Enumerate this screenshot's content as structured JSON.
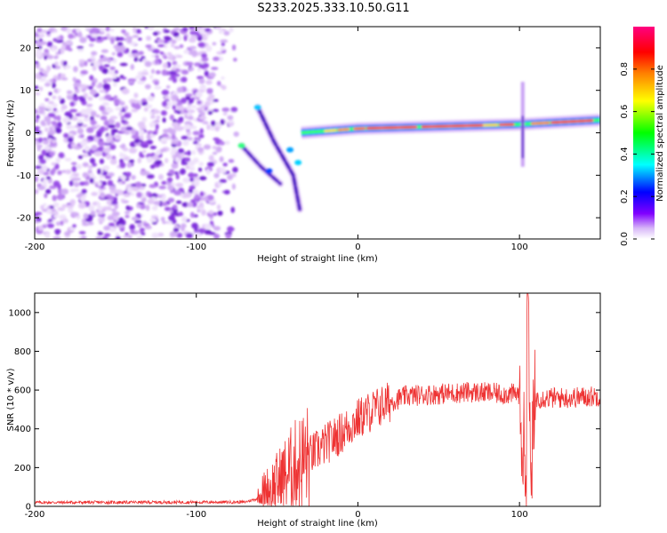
{
  "title": "S233.2025.333.10.50.G11",
  "chart_data": [
    {
      "type": "heatmap",
      "title": "S233.2025.333.10.50.G11",
      "xlabel": "Height of straight line (km)",
      "ylabel": "Frequency (Hz)",
      "xlim": [
        -200,
        150
      ],
      "ylim": [
        -25,
        25
      ],
      "xticks": [
        -200,
        -100,
        0,
        100
      ],
      "xtick_labels": [
        "-200",
        "-100",
        "0",
        "100"
      ],
      "yticks": [
        -20,
        -10,
        0,
        10,
        20
      ],
      "ytick_labels": [
        "-20",
        "-10",
        "0",
        "10",
        "20"
      ],
      "colorbar": {
        "label": "Normalized spectral amplitude",
        "range": [
          0,
          1
        ],
        "ticks": [
          0.0,
          0.2,
          0.4,
          0.6,
          0.8
        ],
        "tick_labels": [
          "0.0",
          "0.2",
          "0.4",
          "0.6",
          "0.8"
        ],
        "colors": [
          "#ffffff",
          "#c890f0",
          "#8000ff",
          "#0000ff",
          "#00ffff",
          "#00ff00",
          "#ffff00",
          "#ff8000",
          "#ff0000",
          "#ff0080"
        ]
      },
      "features": [
        {
          "name": "noise region",
          "x_range": [
            -200,
            -72
          ],
          "freq_range": [
            -25,
            25
          ],
          "amplitude": 0.05
        },
        {
          "name": "descending trace 1",
          "points": [
            [
              -62,
              6
            ],
            [
              -52,
              -2
            ],
            [
              -40,
              -10
            ],
            [
              -36,
              -18
            ]
          ],
          "amplitude": 0.25
        },
        {
          "name": "descending trace 2",
          "points": [
            [
              -72,
              -3
            ],
            [
              -60,
              -8
            ],
            [
              -48,
              -12
            ]
          ],
          "amplitude": 0.15
        },
        {
          "name": "carrier line",
          "points": [
            [
              -35,
              0
            ],
            [
              0,
              1
            ],
            [
              50,
              1.5
            ],
            [
              100,
              2
            ],
            [
              150,
              3
            ]
          ],
          "amplitude": 0.85
        },
        {
          "name": "spike",
          "x": 102,
          "freq_range": [
            -8,
            12
          ],
          "amplitude": 0.2
        }
      ]
    },
    {
      "type": "line",
      "xlabel": "Height of straight line (km)",
      "ylabel": "SNR (10 * v/v)",
      "xlim": [
        -200,
        150
      ],
      "ylim": [
        0,
        1100
      ],
      "xticks": [
        -200,
        -100,
        0,
        100
      ],
      "xtick_labels": [
        "-200",
        "-100",
        "0",
        "100"
      ],
      "yticks": [
        0,
        200,
        400,
        600,
        800,
        1000
      ],
      "ytick_labels": [
        "0",
        "200",
        "400",
        "600",
        "800",
        "1000"
      ],
      "series": [
        {
          "name": "SNR",
          "color": "#ee3333",
          "key_points": [
            [
              -200,
              20
            ],
            [
              -70,
              22
            ],
            [
              -62,
              40
            ],
            [
              -50,
              120
            ],
            [
              -40,
              200
            ],
            [
              -30,
              260
            ],
            [
              -20,
              320
            ],
            [
              -10,
              380
            ],
            [
              0,
              450
            ],
            [
              10,
              500
            ],
            [
              20,
              540
            ],
            [
              30,
              570
            ],
            [
              50,
              580
            ],
            [
              70,
              590
            ],
            [
              90,
              580
            ],
            [
              100,
              580
            ],
            [
              104,
              100
            ],
            [
              105,
              1100
            ],
            [
              107,
              90
            ],
            [
              110,
              560
            ],
            [
              130,
              560
            ],
            [
              150,
              570
            ]
          ]
        }
      ]
    }
  ]
}
